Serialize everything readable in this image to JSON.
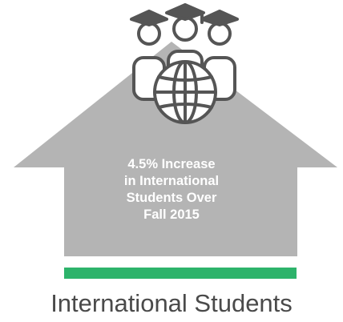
{
  "stat": {
    "lines": [
      "4.5% Increase",
      "in International",
      "Students Over",
      "Fall 2015"
    ]
  },
  "caption": "International Students",
  "colors": {
    "house": "#b4b4b4",
    "icon_stroke": "#555555",
    "accent_bar": "#2db36b",
    "caption_text": "#4a4a4a",
    "stat_text": "#ffffff"
  },
  "icons": [
    "graduate-icon",
    "globe-icon",
    "house-arrow-icon"
  ]
}
